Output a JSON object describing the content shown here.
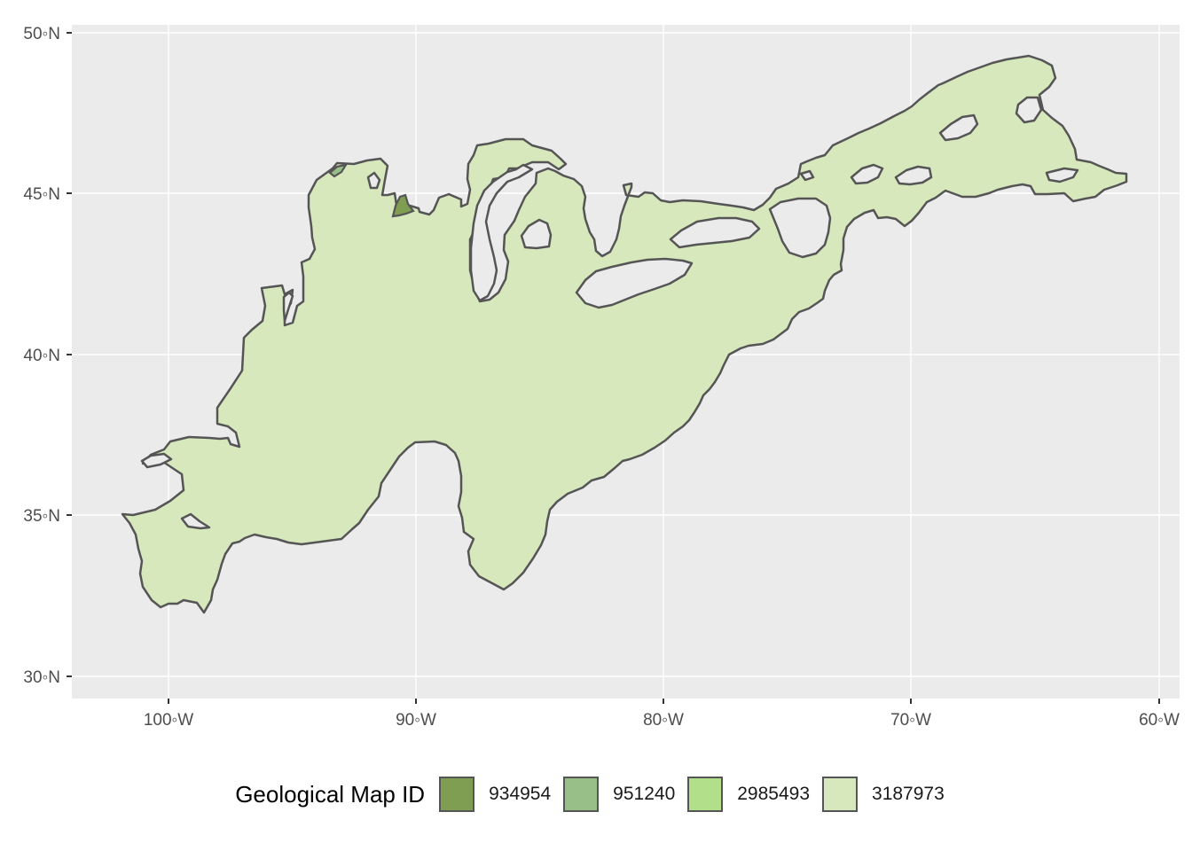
{
  "map": {
    "y_axis": {
      "ticks": [
        "50◦N",
        "45◦N",
        "40◦N",
        "35◦N",
        "30◦N"
      ]
    },
    "x_axis": {
      "ticks": [
        "100◦W",
        "90◦W",
        "80◦W",
        "70◦W",
        "60◦W"
      ]
    },
    "colors": {
      "panel_background": "#ebebeb",
      "grid": "#ffffff",
      "region_outline": "#555555"
    }
  },
  "legend": {
    "title": "Geological Map ID",
    "items": [
      {
        "label": "934954",
        "color": "#7f9e52"
      },
      {
        "label": "951240",
        "color": "#98bf88"
      },
      {
        "label": "2985493",
        "color": "#b2df8a"
      },
      {
        "label": "3187973",
        "color": "#d8e8bd"
      }
    ]
  }
}
